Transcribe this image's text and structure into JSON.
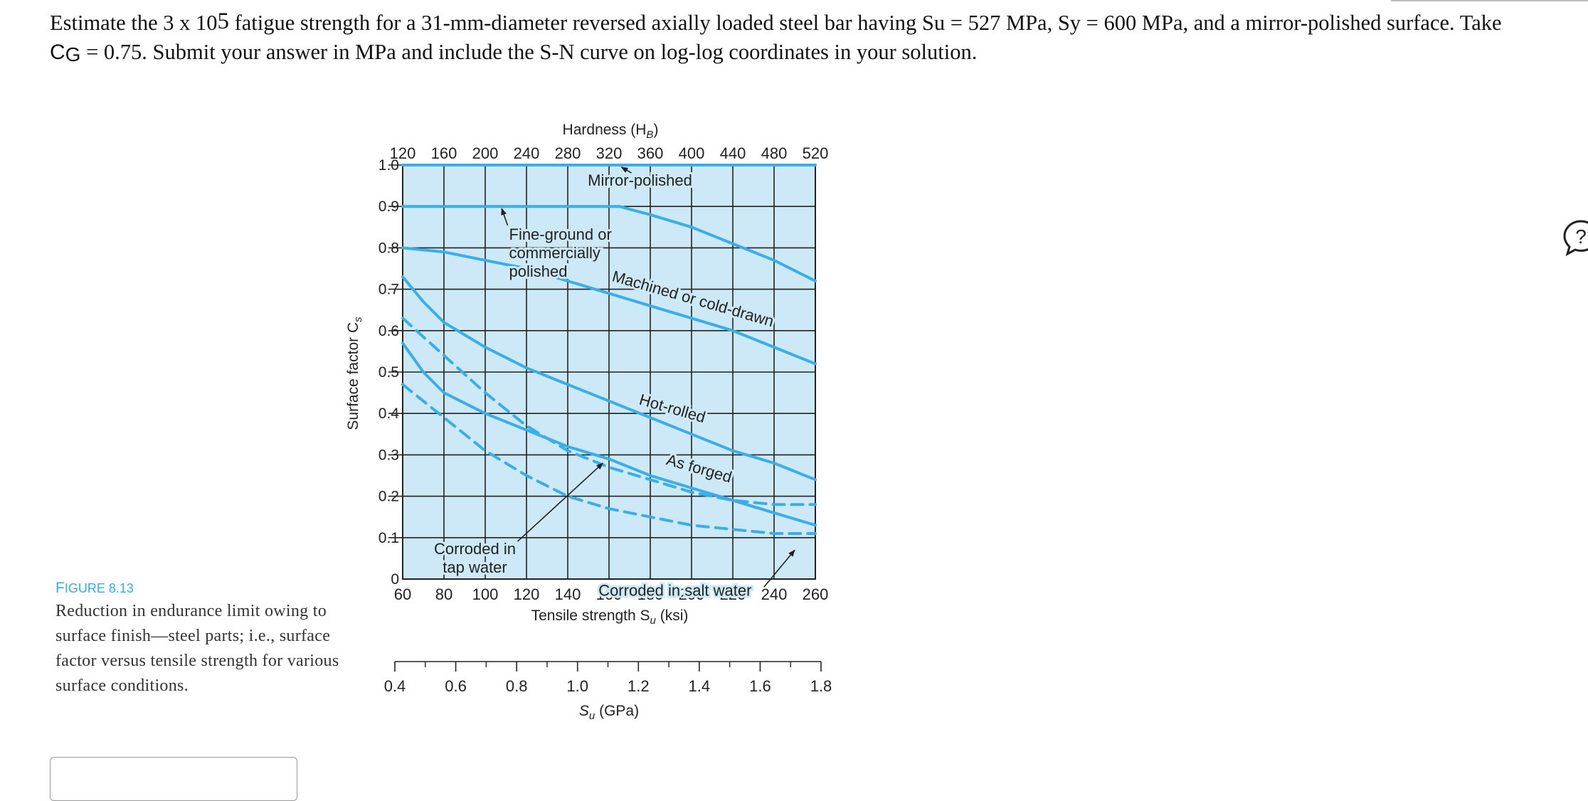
{
  "question": {
    "part1": "Estimate the 3 x 10",
    "exp": "5",
    "part2": " fatigue strength for a 31-mm-diameter reversed axially loaded steel bar having Su = 527 MPa, Sy = 600 MPa, and a mirror-polished surface. Take",
    "cg": "C",
    "cg_sub": "G",
    "part3": " = 0.75. Submit your answer in MPa and include the S-N curve on log-log coordinates in your solution."
  },
  "figure": {
    "label_prefix": "F",
    "label_rest": "IGURE 8.13",
    "caption": "Reduction in endurance limit owing to surface finish—steel parts; i.e., surface factor versus tensile strength for various surface conditions."
  },
  "icons": {
    "help": "help-bubble-icon"
  },
  "answer": {
    "value": ""
  },
  "chart_data": {
    "type": "line",
    "top_axis_title": "Hardness (H",
    "top_axis_title_sub": "B",
    "top_axis_title_end": ")",
    "top_ticks": [
      "120",
      "160",
      "200",
      "240",
      "280",
      "320",
      "360",
      "400",
      "440",
      "480",
      "520"
    ],
    "y_title": "Surface factor C",
    "y_title_sub": "s",
    "y_ticks": [
      "1.0",
      "0.9",
      "0.8",
      "0.7",
      "0.6",
      "0.5",
      "0.4",
      "0.3",
      "0.2",
      "0.1",
      "0"
    ],
    "ylim": [
      0,
      1.0
    ],
    "x_ticks": [
      "60",
      "80",
      "100",
      "120",
      "140",
      "160",
      "180",
      "200",
      "220",
      "240",
      "260"
    ],
    "xlim": [
      60,
      260
    ],
    "x_title": "Tensile strength S",
    "x_title_sub": "u",
    "x_title_end": " (ksi)",
    "gpa_ticks": [
      "0.4",
      "0.6",
      "0.8",
      "1.0",
      "1.2",
      "1.4",
      "1.6",
      "1.8"
    ],
    "gpa_title": "S",
    "gpa_title_sub": "u",
    "gpa_title_end": " (GPa)",
    "grid": true,
    "colors": {
      "line": "#3aaee8",
      "fill": "#cde8f7",
      "grid": "#222222"
    },
    "series": [
      {
        "name": "Mirror-polished",
        "style": "solid",
        "points": [
          [
            60,
            1.0
          ],
          [
            260,
            1.0
          ]
        ]
      },
      {
        "name": "Fine-ground or commercially polished",
        "style": "solid",
        "points": [
          [
            60,
            0.9
          ],
          [
            150,
            0.9
          ],
          [
            165,
            0.9
          ],
          [
            180,
            0.88
          ],
          [
            200,
            0.85
          ],
          [
            220,
            0.81
          ],
          [
            240,
            0.77
          ],
          [
            260,
            0.72
          ]
        ]
      },
      {
        "name": "Machined or cold-drawn",
        "style": "solid",
        "points": [
          [
            60,
            0.8
          ],
          [
            80,
            0.79
          ],
          [
            100,
            0.77
          ],
          [
            120,
            0.75
          ],
          [
            140,
            0.72
          ],
          [
            160,
            0.69
          ],
          [
            180,
            0.66
          ],
          [
            200,
            0.63
          ],
          [
            220,
            0.6
          ],
          [
            240,
            0.56
          ],
          [
            260,
            0.52
          ]
        ]
      },
      {
        "name": "Hot-rolled",
        "style": "solid",
        "points": [
          [
            60,
            0.73
          ],
          [
            70,
            0.67
          ],
          [
            80,
            0.62
          ],
          [
            100,
            0.56
          ],
          [
            120,
            0.51
          ],
          [
            140,
            0.47
          ],
          [
            160,
            0.43
          ],
          [
            180,
            0.39
          ],
          [
            200,
            0.35
          ],
          [
            220,
            0.31
          ],
          [
            240,
            0.28
          ],
          [
            260,
            0.24
          ]
        ]
      },
      {
        "name": "As forged",
        "style": "solid",
        "points": [
          [
            60,
            0.57
          ],
          [
            70,
            0.5
          ],
          [
            80,
            0.45
          ],
          [
            100,
            0.4
          ],
          [
            120,
            0.36
          ],
          [
            140,
            0.32
          ],
          [
            160,
            0.29
          ],
          [
            180,
            0.25
          ],
          [
            200,
            0.22
          ],
          [
            220,
            0.19
          ],
          [
            240,
            0.16
          ],
          [
            260,
            0.13
          ]
        ]
      },
      {
        "name": "Corroded in tap water",
        "style": "dashed",
        "points": [
          [
            60,
            0.63
          ],
          [
            80,
            0.54
          ],
          [
            100,
            0.45
          ],
          [
            120,
            0.37
          ],
          [
            140,
            0.31
          ],
          [
            160,
            0.27
          ],
          [
            180,
            0.24
          ],
          [
            200,
            0.21
          ],
          [
            220,
            0.19
          ],
          [
            240,
            0.18
          ],
          [
            260,
            0.18
          ]
        ]
      },
      {
        "name": "Corroded in salt water",
        "style": "dashed",
        "points": [
          [
            60,
            0.47
          ],
          [
            80,
            0.39
          ],
          [
            100,
            0.31
          ],
          [
            120,
            0.25
          ],
          [
            140,
            0.2
          ],
          [
            160,
            0.17
          ],
          [
            180,
            0.15
          ],
          [
            200,
            0.13
          ],
          [
            220,
            0.12
          ],
          [
            240,
            0.11
          ],
          [
            260,
            0.11
          ]
        ]
      }
    ],
    "annotations": [
      {
        "text": "Mirror-polished",
        "at": [
          175,
          0.95
        ],
        "arrow_to": [
          166,
          0.995
        ]
      },
      {
        "text": [
          "Fine-ground or",
          "commercially",
          "polished"
        ],
        "at": [
          115,
          0.82
        ],
        "arrow_to": [
          108,
          0.895
        ]
      },
      {
        "text": "Machined or cold-drawn",
        "at": [
          200,
          0.665
        ],
        "rotate": 16
      },
      {
        "text": "Hot-rolled",
        "at": [
          190,
          0.4
        ],
        "rotate": 16
      },
      {
        "text": "As forged",
        "at": [
          203,
          0.255
        ],
        "rotate": 16
      },
      {
        "text": [
          "Corroded in",
          "tap water"
        ],
        "at": [
          95,
          0.06
        ],
        "arrow_to": [
          157,
          0.28
        ]
      },
      {
        "text": "Corroded in salt water",
        "at": [
          192,
          -0.04
        ],
        "arrow_to": [
          250,
          0.07
        ]
      }
    ]
  }
}
